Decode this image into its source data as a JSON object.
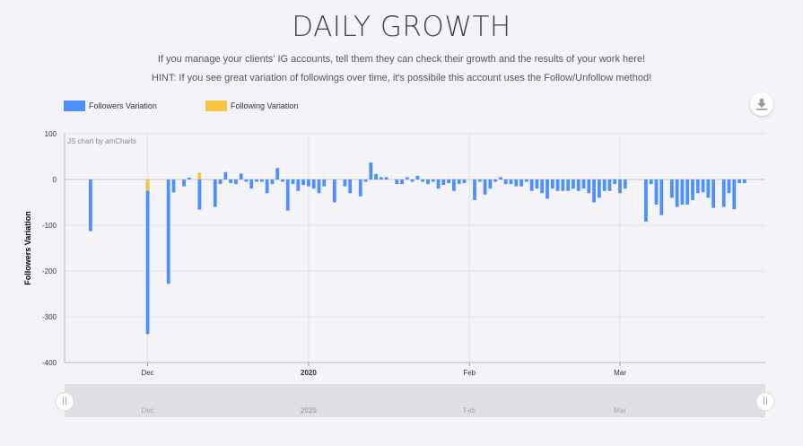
{
  "header": {
    "title": "DAILY GROWTH",
    "line1": "If you manage your clients' IG accounts, tell them they can check their growth and the results of your work here!",
    "line2": "HINT: If you see great variation of followings over time, it's possibile this account uses the Follow/Unfollow method!"
  },
  "toolbar": {
    "download_icon": "download-icon"
  },
  "colors": {
    "followers": "#4d90fe",
    "following": "#f5c440"
  },
  "chart_data": {
    "type": "bar",
    "credit": "JS chart by amCharts",
    "ylabel": "Followers Variation",
    "ylim": [
      -400,
      100
    ],
    "yticks": [
      "100",
      "0",
      "-100",
      "-200",
      "-300",
      "-400"
    ],
    "xticks": [
      {
        "label": "Dec",
        "day": 11,
        "bold": false
      },
      {
        "label": "2020",
        "day": 42,
        "bold": true
      },
      {
        "label": "Feb",
        "day": 73,
        "bold": false
      },
      {
        "label": "Mar",
        "day": 102,
        "bold": false
      }
    ],
    "scrollbar_labels": [
      "Dec",
      "2020",
      "Feb",
      "Mar"
    ],
    "x_domain": [
      -5,
      130
    ],
    "series": [
      {
        "name": "Followers Variation",
        "points": [
          [
            0,
            -113
          ],
          [
            11,
            -338
          ],
          [
            15,
            -228
          ],
          [
            16,
            -28
          ],
          [
            18,
            -15
          ],
          [
            19,
            4
          ],
          [
            21,
            -66
          ],
          [
            24,
            -60
          ],
          [
            25,
            -10
          ],
          [
            26,
            16
          ],
          [
            27,
            -8
          ],
          [
            28,
            -10
          ],
          [
            29,
            13
          ],
          [
            30,
            -5
          ],
          [
            31,
            -20
          ],
          [
            32,
            -5
          ],
          [
            33,
            -5
          ],
          [
            34,
            -30
          ],
          [
            35,
            -10
          ],
          [
            36,
            25
          ],
          [
            37,
            -5
          ],
          [
            38,
            -68
          ],
          [
            39,
            -10
          ],
          [
            40,
            -25
          ],
          [
            41,
            -12
          ],
          [
            42,
            -15
          ],
          [
            43,
            -20
          ],
          [
            44,
            -30
          ],
          [
            45,
            -15
          ],
          [
            47,
            -50
          ],
          [
            49,
            -15
          ],
          [
            50,
            -30
          ],
          [
            52,
            -37
          ],
          [
            53,
            -5
          ],
          [
            54,
            37
          ],
          [
            55,
            12
          ],
          [
            56,
            5
          ],
          [
            57,
            5
          ],
          [
            59,
            -10
          ],
          [
            60,
            -10
          ],
          [
            61,
            5
          ],
          [
            62,
            -5
          ],
          [
            63,
            8
          ],
          [
            64,
            -5
          ],
          [
            65,
            -10
          ],
          [
            66,
            -5
          ],
          [
            67,
            -20
          ],
          [
            68,
            -12
          ],
          [
            69,
            -8
          ],
          [
            70,
            -25
          ],
          [
            71,
            -10
          ],
          [
            72,
            -8
          ],
          [
            74,
            -45
          ],
          [
            75,
            -5
          ],
          [
            76,
            -33
          ],
          [
            77,
            -20
          ],
          [
            78,
            -5
          ],
          [
            79,
            5
          ],
          [
            80,
            -10
          ],
          [
            81,
            -10
          ],
          [
            82,
            -15
          ],
          [
            83,
            -15
          ],
          [
            84,
            -5
          ],
          [
            85,
            -25
          ],
          [
            86,
            -20
          ],
          [
            87,
            -30
          ],
          [
            88,
            -42
          ],
          [
            89,
            -20
          ],
          [
            90,
            -25
          ],
          [
            91,
            -25
          ],
          [
            92,
            -25
          ],
          [
            93,
            -20
          ],
          [
            94,
            -25
          ],
          [
            95,
            -20
          ],
          [
            96,
            -30
          ],
          [
            97,
            -50
          ],
          [
            98,
            -40
          ],
          [
            99,
            -25
          ],
          [
            100,
            -25
          ],
          [
            101,
            -10
          ],
          [
            102,
            -30
          ],
          [
            103,
            -20
          ],
          [
            107,
            -92
          ],
          [
            108,
            -10
          ],
          [
            109,
            -55
          ],
          [
            110,
            -78
          ],
          [
            112,
            -40
          ],
          [
            113,
            -60
          ],
          [
            114,
            -55
          ],
          [
            115,
            -55
          ],
          [
            116,
            -45
          ],
          [
            117,
            -30
          ],
          [
            118,
            -28
          ],
          [
            119,
            -40
          ],
          [
            120,
            -62
          ],
          [
            122,
            -60
          ],
          [
            123,
            -30
          ],
          [
            124,
            -65
          ],
          [
            125,
            -8
          ],
          [
            126,
            -8
          ]
        ]
      },
      {
        "name": "Following Variation",
        "points": [
          [
            11,
            -25
          ],
          [
            21,
            15
          ]
        ]
      }
    ]
  }
}
